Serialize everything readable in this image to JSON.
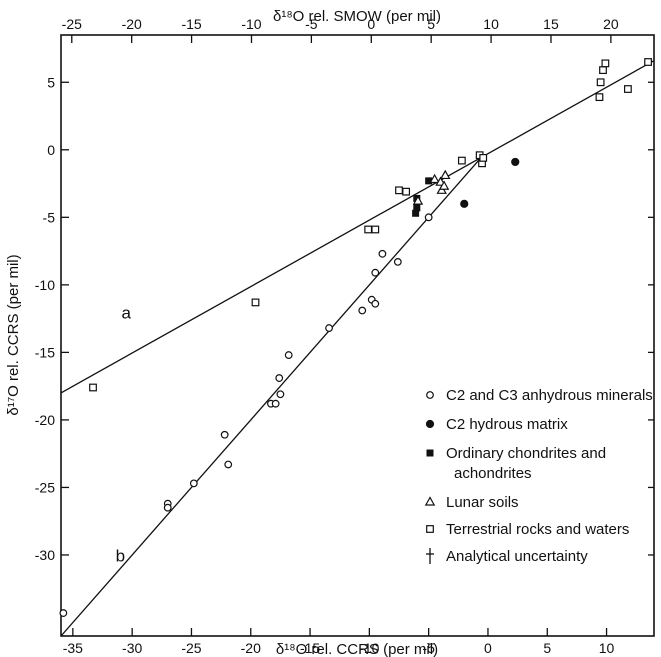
{
  "chart_data": {
    "type": "scatter",
    "title": "",
    "xlabel": "δ¹⁸O rel. CCRS (per mil)",
    "ylabel": "δ¹⁷O rel. CCRS (per mil)",
    "x2label": "δ¹⁸O rel. SMOW (per mil)",
    "xlim": [
      -36,
      14
    ],
    "ylim": [
      -36,
      8.5
    ],
    "x2lim": [
      -25.9,
      23.6
    ],
    "xticks": [
      -35,
      -30,
      -25,
      -20,
      -15,
      -10,
      -5,
      0,
      5,
      10
    ],
    "xtick_labels": [
      "-35",
      "-30",
      "-25",
      "-20",
      "-15",
      "-10",
      "-5",
      "0",
      "5",
      "10"
    ],
    "yticks": [
      5,
      0,
      -5,
      -10,
      -15,
      -20,
      -25,
      -30
    ],
    "ytick_labels": [
      "5",
      "0",
      "-5",
      "-10",
      "-15",
      "-20",
      "-25",
      "-30"
    ],
    "x2ticks": [
      -25,
      -20,
      -15,
      -10,
      -5,
      0,
      5,
      10,
      15,
      20
    ],
    "x2tick_labels": [
      "-25",
      "-20",
      "-15",
      "-10",
      "-5",
      "0",
      "5",
      "10",
      "15",
      "20"
    ],
    "grid": false,
    "legend_position": "lower-right",
    "lines": [
      {
        "label": "a",
        "x1": -36,
        "y1": -18.0,
        "x2": 14,
        "y2": 6.6,
        "label_x": -30.5,
        "label_y": -12.5
      },
      {
        "label": "b",
        "x1": -36,
        "y1": -36.0,
        "x2": -0.5,
        "y2": -0.5,
        "label_x": -31.0,
        "label_y": -30.5
      }
    ],
    "series": [
      {
        "name": "C2 and C3 anhydrous minerals",
        "marker": "open-circle",
        "points": [
          [
            -35.8,
            -34.3
          ],
          [
            -27.0,
            -26.2
          ],
          [
            -27.0,
            -26.5
          ],
          [
            -24.8,
            -24.7
          ],
          [
            -22.2,
            -21.1
          ],
          [
            -21.9,
            -23.3
          ],
          [
            -18.3,
            -18.8
          ],
          [
            -17.9,
            -18.8
          ],
          [
            -17.6,
            -16.9
          ],
          [
            -17.5,
            -18.1
          ],
          [
            -16.8,
            -15.2
          ],
          [
            -13.4,
            -13.2
          ],
          [
            -10.6,
            -11.9
          ],
          [
            -9.8,
            -11.1
          ],
          [
            -9.5,
            -11.4
          ],
          [
            -9.5,
            -9.1
          ],
          [
            -8.9,
            -7.7
          ],
          [
            -7.6,
            -8.3
          ],
          [
            -5.0,
            -5.0
          ]
        ]
      },
      {
        "name": "C2 hydrous matrix",
        "marker": "filled-circle",
        "points": [
          [
            -2.0,
            -4.0
          ],
          [
            2.3,
            -0.9
          ]
        ]
      },
      {
        "name": "Ordinary chondrites and achondrites",
        "marker": "filled-square",
        "points": [
          [
            -6.0,
            -3.6
          ],
          [
            -6.0,
            -4.3
          ],
          [
            -6.1,
            -4.7
          ],
          [
            -5.0,
            -2.3
          ]
        ]
      },
      {
        "name": "Lunar soils",
        "marker": "open-triangle",
        "points": [
          [
            -4.5,
            -2.2
          ],
          [
            -4.0,
            -2.4
          ],
          [
            -3.9,
            -3.0
          ],
          [
            -3.7,
            -2.7
          ],
          [
            -3.6,
            -1.9
          ],
          [
            -5.9,
            -3.8
          ]
        ]
      },
      {
        "name": "Terrestrial rocks and waters",
        "marker": "open-square",
        "points": [
          [
            -33.3,
            -17.6
          ],
          [
            -19.6,
            -11.3
          ],
          [
            -10.1,
            -5.9
          ],
          [
            -9.5,
            -5.9
          ],
          [
            -7.5,
            -3.0
          ],
          [
            -6.9,
            -3.1
          ],
          [
            -2.2,
            -0.8
          ],
          [
            -0.7,
            -0.4
          ],
          [
            -0.5,
            -1.0
          ],
          [
            -0.4,
            -0.6
          ],
          [
            9.4,
            3.9
          ],
          [
            9.5,
            5.0
          ],
          [
            9.7,
            5.9
          ],
          [
            9.9,
            6.4
          ],
          [
            11.8,
            4.5
          ],
          [
            13.5,
            6.5
          ]
        ]
      },
      {
        "name": "Analytical uncertainty",
        "marker": "error-cross",
        "points": []
      }
    ]
  }
}
